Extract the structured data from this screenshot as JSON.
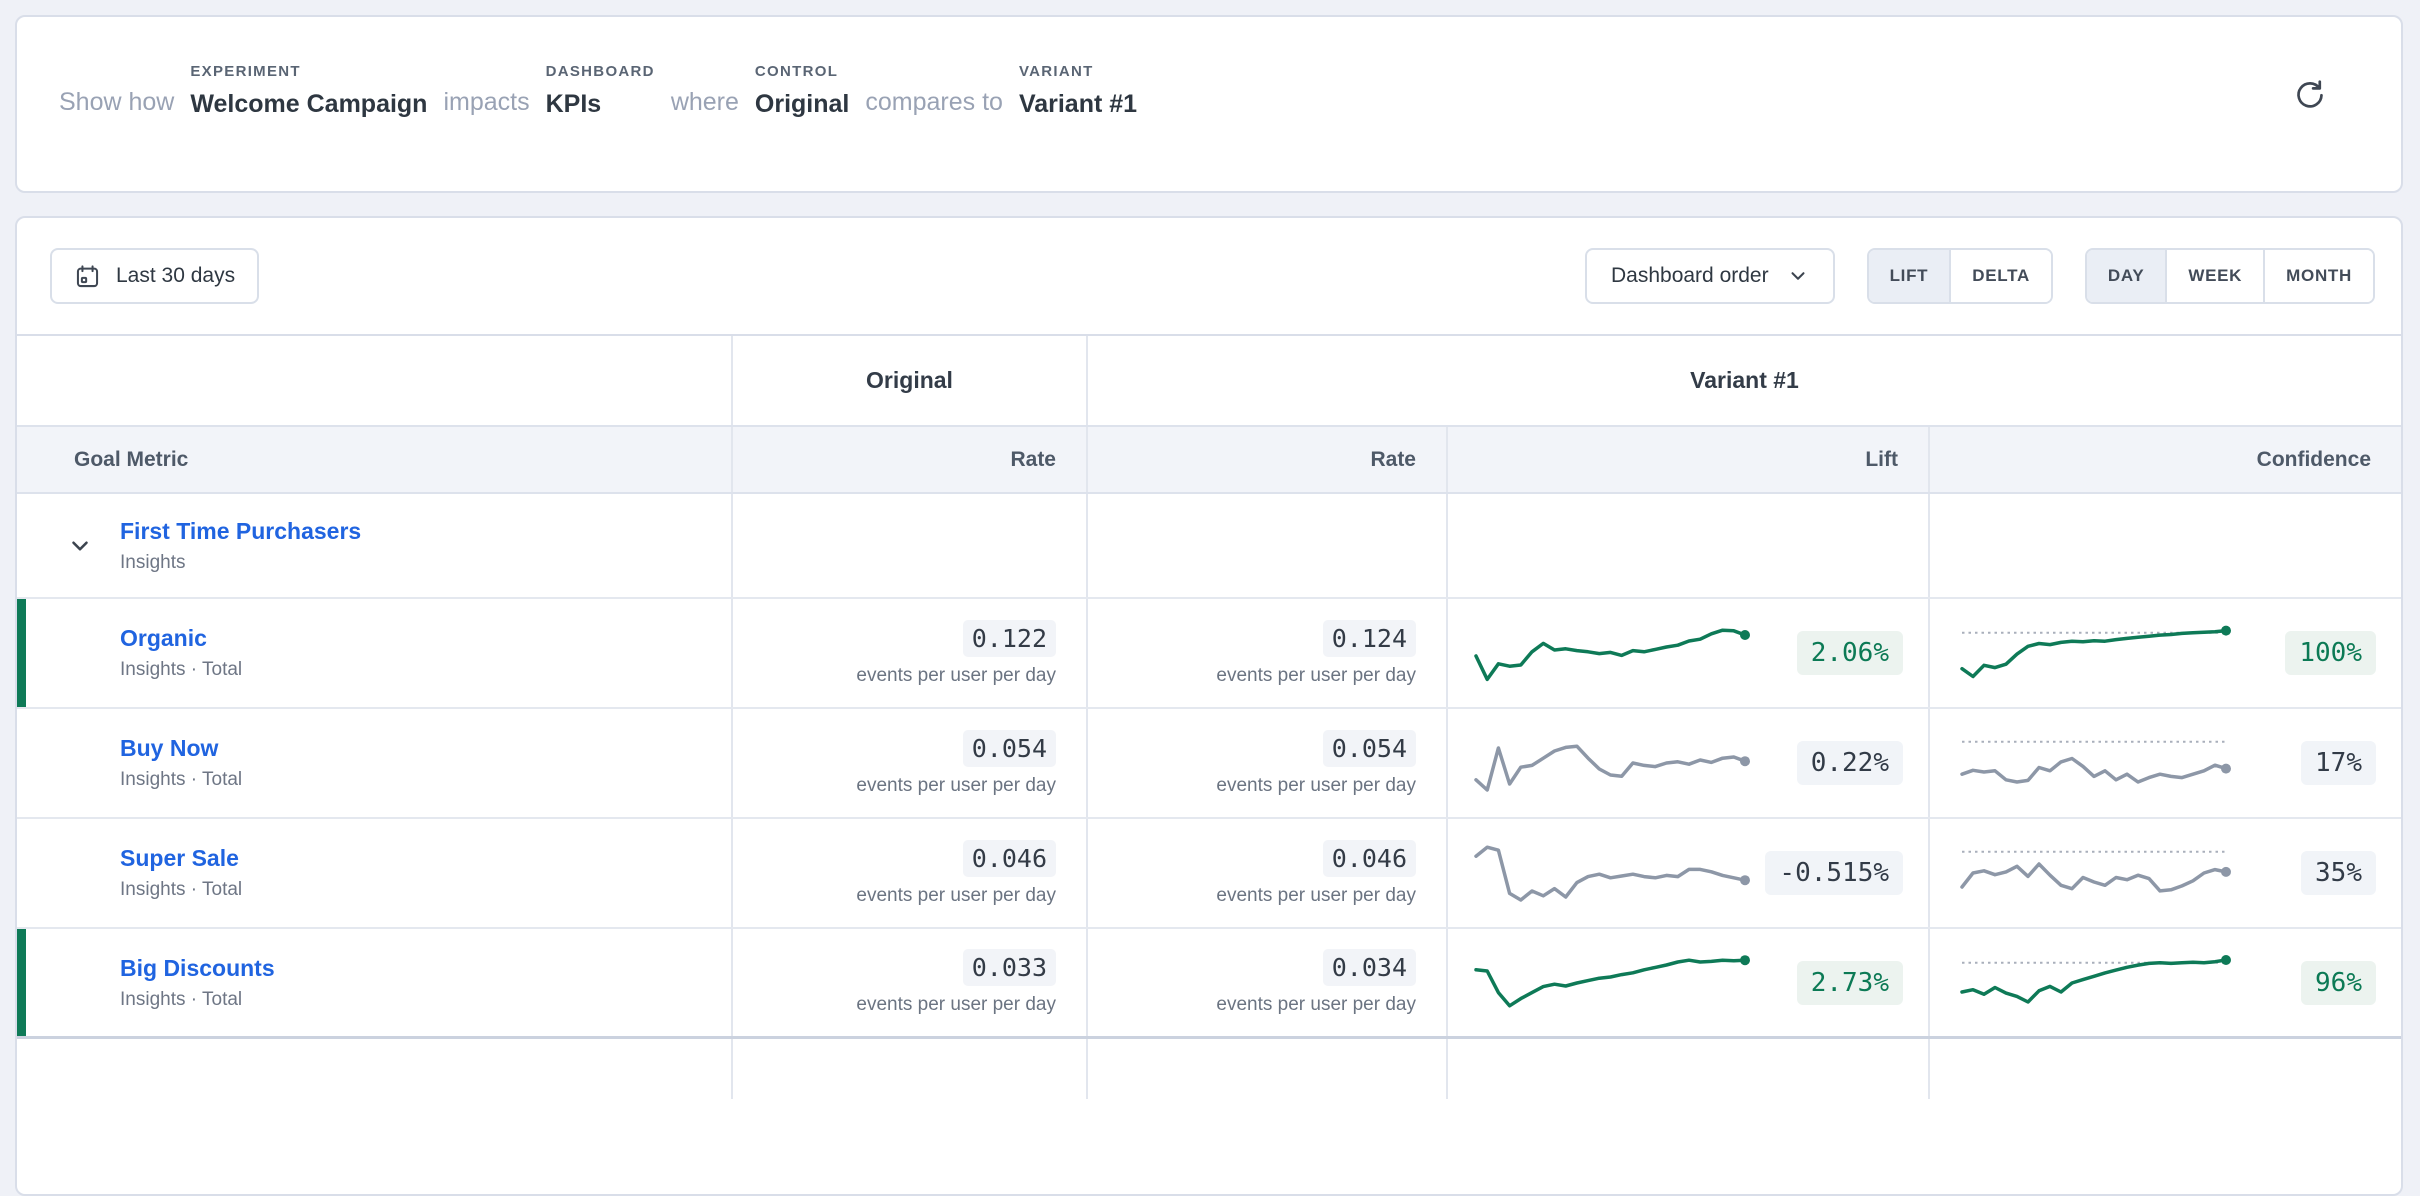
{
  "colors": {
    "positive_green": "#0E7A57",
    "positive_badge_bg": "#ECF3EF",
    "neutral_gray": "#8D97A7",
    "value_text": "#333B46",
    "link_blue": "#2064E0",
    "page_background": "#EFF1F7",
    "card_border": "#D9DEE9",
    "subheader_bg": "#F2F4F9"
  },
  "query_builder": {
    "show_how": "Show how",
    "experiment": {
      "label": "EXPERIMENT",
      "value": "Welcome Campaign"
    },
    "impacts": "impacts",
    "dashboard": {
      "label": "DASHBOARD",
      "value": "KPIs"
    },
    "where": "where",
    "control": {
      "label": "CONTROL",
      "value": "Original"
    },
    "compares_to": "compares to",
    "variant": {
      "label": "VARIANT",
      "value": "Variant #1"
    }
  },
  "toolbar": {
    "date_range": "Last 30 days",
    "sort_order": "Dashboard order",
    "mode_toggle": [
      {
        "label": "LIFT",
        "selected": true
      },
      {
        "label": "DELTA",
        "selected": false
      }
    ],
    "granularity_toggle": [
      {
        "label": "DAY",
        "selected": true
      },
      {
        "label": "WEEK",
        "selected": false
      },
      {
        "label": "MONTH",
        "selected": false
      }
    ]
  },
  "table": {
    "variant_headers": {
      "control": "Original",
      "variant": "Variant #1"
    },
    "column_headers": {
      "goal_metric": "Goal Metric",
      "control_rate": "Rate",
      "variant_rate": "Rate",
      "lift": "Lift",
      "confidence": "Confidence"
    },
    "rate_unit": "events per user per day",
    "parent_row": {
      "name": "First Time Purchasers",
      "source": "Insights"
    },
    "rows": [
      {
        "name": "Organic",
        "source": "Insights · Total",
        "control_rate": "0.122",
        "variant_rate": "0.124",
        "lift": "2.06%",
        "confidence": "100%",
        "trend": "positive",
        "highlighted": true,
        "lift_spark": {
          "color": "#0E7A57",
          "points": [
            0.45,
            0.06,
            0.32,
            0.28,
            0.3,
            0.52,
            0.66,
            0.55,
            0.57,
            0.54,
            0.52,
            0.49,
            0.51,
            0.46,
            0.54,
            0.52,
            0.56,
            0.6,
            0.63,
            0.7,
            0.73,
            0.82,
            0.88,
            0.87,
            0.8
          ]
        },
        "confidence_spark": {
          "color": "#0E7A57",
          "threshold": 0.86,
          "points": [
            0.22,
            0.08,
            0.28,
            0.24,
            0.3,
            0.48,
            0.62,
            0.67,
            0.65,
            0.69,
            0.71,
            0.7,
            0.72,
            0.71,
            0.74,
            0.76,
            0.78,
            0.8,
            0.82,
            0.83,
            0.85,
            0.86,
            0.87,
            0.88,
            0.9
          ]
        }
      },
      {
        "name": "Buy Now",
        "source": "Insights · Total",
        "control_rate": "0.054",
        "variant_rate": "0.054",
        "lift": "0.22%",
        "confidence": "17%",
        "trend": "neutral",
        "highlighted": false,
        "lift_spark": {
          "color": "#8D97A7",
          "points": [
            0.22,
            0.05,
            0.75,
            0.15,
            0.43,
            0.46,
            0.58,
            0.7,
            0.76,
            0.78,
            0.58,
            0.4,
            0.3,
            0.28,
            0.5,
            0.46,
            0.44,
            0.5,
            0.52,
            0.48,
            0.55,
            0.51,
            0.58,
            0.6,
            0.53
          ]
        },
        "confidence_spark": {
          "color": "#8D97A7",
          "threshold": 0.88,
          "points": [
            0.3,
            0.37,
            0.34,
            0.36,
            0.2,
            0.16,
            0.19,
            0.42,
            0.36,
            0.52,
            0.58,
            0.44,
            0.26,
            0.36,
            0.2,
            0.3,
            0.16,
            0.24,
            0.3,
            0.26,
            0.24,
            0.3,
            0.36,
            0.46,
            0.4
          ]
        }
      },
      {
        "name": "Super Sale",
        "source": "Insights · Total",
        "control_rate": "0.046",
        "variant_rate": "0.046",
        "lift": "-0.515%",
        "confidence": "35%",
        "trend": "neutral",
        "highlighted": false,
        "lift_spark": {
          "color": "#8D97A7",
          "points": [
            0.78,
            0.93,
            0.88,
            0.16,
            0.05,
            0.2,
            0.12,
            0.24,
            0.1,
            0.34,
            0.44,
            0.48,
            0.42,
            0.45,
            0.48,
            0.44,
            0.42,
            0.46,
            0.44,
            0.56,
            0.56,
            0.52,
            0.46,
            0.42,
            0.38
          ]
        },
        "confidence_spark": {
          "color": "#8D97A7",
          "threshold": 0.88,
          "points": [
            0.25,
            0.5,
            0.54,
            0.47,
            0.52,
            0.62,
            0.44,
            0.66,
            0.46,
            0.28,
            0.22,
            0.42,
            0.34,
            0.28,
            0.42,
            0.38,
            0.46,
            0.4,
            0.18,
            0.2,
            0.27,
            0.36,
            0.5,
            0.56,
            0.52
          ]
        }
      },
      {
        "name": "Big Discounts",
        "source": "Insights · Total",
        "control_rate": "0.033",
        "variant_rate": "0.034",
        "lift": "2.73%",
        "confidence": "96%",
        "trend": "positive",
        "highlighted": true,
        "lift_spark": {
          "color": "#0E7A57",
          "points": [
            0.72,
            0.7,
            0.34,
            0.12,
            0.24,
            0.34,
            0.44,
            0.48,
            0.45,
            0.5,
            0.54,
            0.58,
            0.6,
            0.64,
            0.67,
            0.72,
            0.76,
            0.8,
            0.85,
            0.88,
            0.85,
            0.86,
            0.88,
            0.87,
            0.88
          ]
        },
        "confidence_spark": {
          "color": "#0E7A57",
          "threshold": 0.86,
          "points": [
            0.34,
            0.38,
            0.3,
            0.42,
            0.32,
            0.26,
            0.16,
            0.36,
            0.44,
            0.34,
            0.5,
            0.56,
            0.62,
            0.68,
            0.73,
            0.78,
            0.82,
            0.85,
            0.86,
            0.85,
            0.86,
            0.87,
            0.86,
            0.88,
            0.91
          ]
        }
      }
    ]
  }
}
